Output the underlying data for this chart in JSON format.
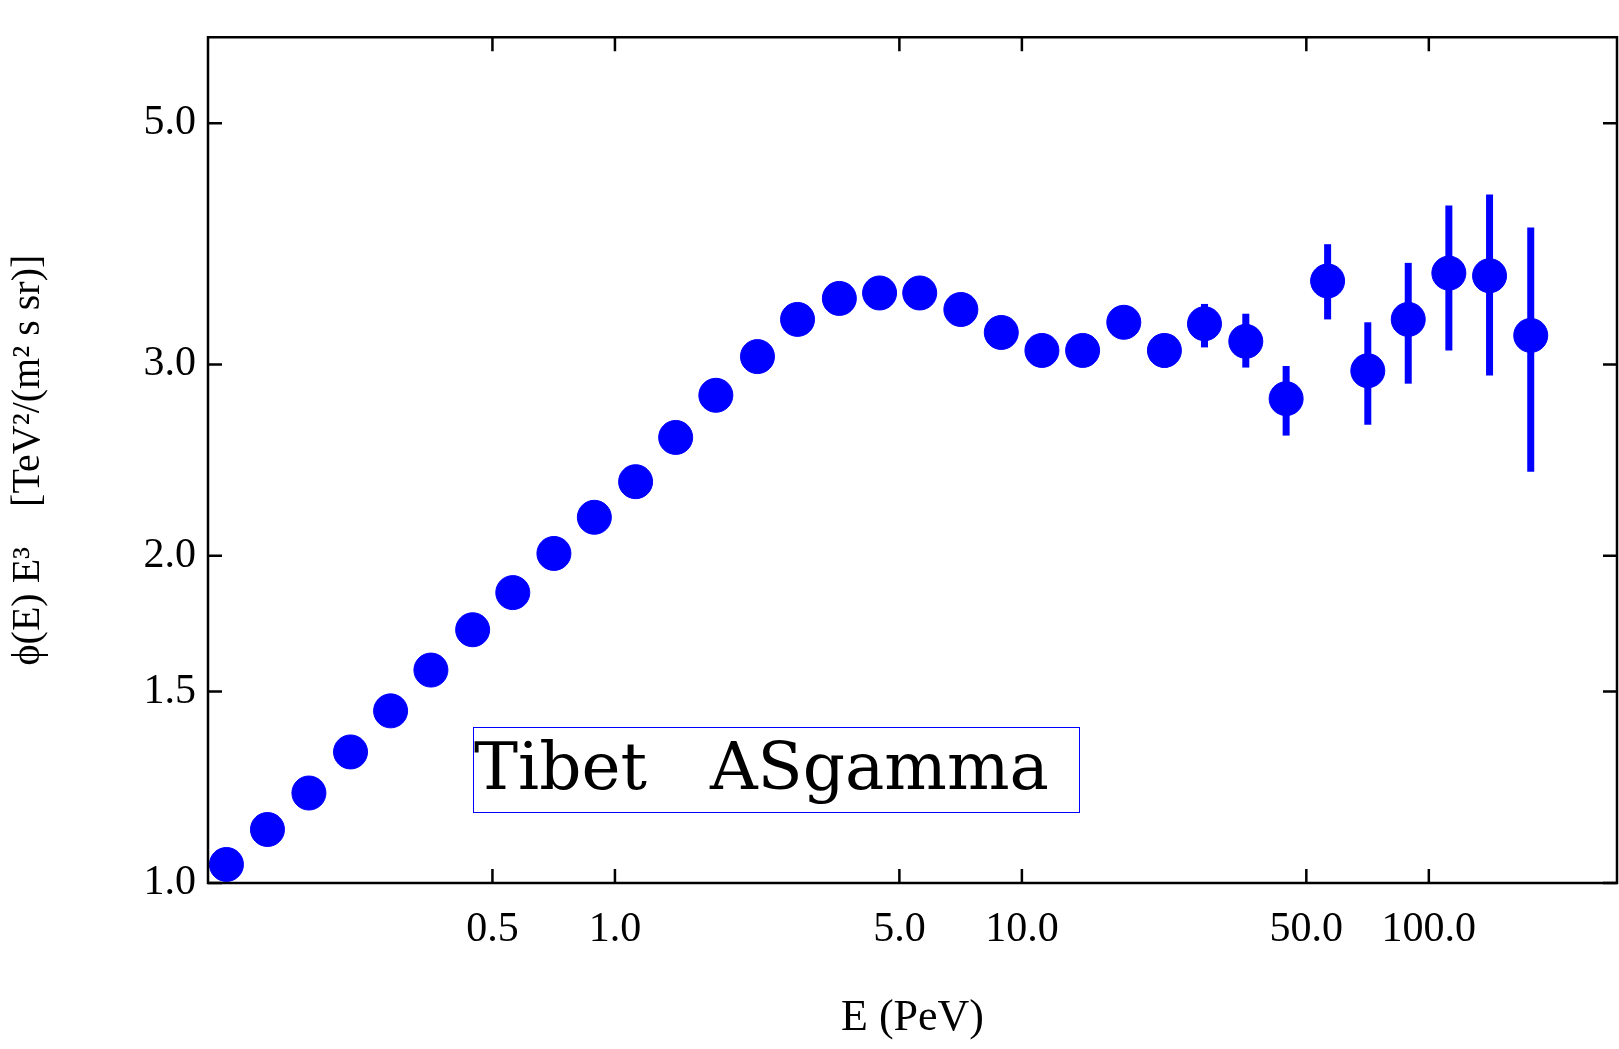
{
  "chart_data": {
    "type": "scatter",
    "xlabel": "E (PeV)",
    "ylabel": "ϕ(E) E³    [TeV²/(m² s sr)]",
    "log": "xy",
    "grid": false,
    "legend": false,
    "marker": "circle",
    "annotations": [
      "Tibet   ASgamma"
    ],
    "xlim": [
      0.1,
      290
    ],
    "ylim": [
      1.0,
      6.0
    ],
    "xticks": [
      0.5,
      {
        "value": 1,
        "label": "1.0"
      },
      {
        "value": 5,
        "label": "5.0"
      },
      {
        "value": 10,
        "label": "10.0"
      },
      {
        "value": 50,
        "label": "50.0"
      },
      {
        "value": 100,
        "label": "100.0"
      }
    ],
    "yticks": [
      {
        "value": 1,
        "label": "1.0"
      },
      1.5,
      {
        "value": 2,
        "label": "2.0"
      },
      {
        "value": 3,
        "label": "3.0"
      },
      {
        "value": 5,
        "label": "5.0"
      }
    ],
    "series": [
      {
        "color": "#0000ff",
        "x": [
          0.111,
          0.14,
          0.177,
          0.224,
          0.281,
          0.353,
          0.447,
          0.561,
          0.708,
          0.89,
          1.124,
          1.41,
          1.77,
          2.24,
          2.81,
          3.56,
          4.47,
          5.61,
          7.08,
          8.9,
          11.2,
          14.1,
          17.8,
          22.4,
          28.1,
          35.5,
          44.6,
          56.4,
          70.8,
          89.0,
          112,
          141,
          178
        ],
        "values": [
          1.04,
          1.12,
          1.21,
          1.32,
          1.44,
          1.57,
          1.71,
          1.85,
          2.01,
          2.17,
          2.34,
          2.57,
          2.81,
          3.05,
          3.3,
          3.45,
          3.49,
          3.49,
          3.37,
          3.21,
          3.09,
          3.09,
          3.28,
          3.09,
          3.27,
          3.15,
          2.79,
          3.58,
          2.96,
          3.3,
          3.64,
          3.62,
          3.19
        ],
        "errors": [
          null,
          null,
          null,
          null,
          null,
          null,
          null,
          null,
          null,
          null,
          null,
          null,
          null,
          null,
          null,
          null,
          null,
          null,
          null,
          null,
          null,
          null,
          null,
          [
            2.98,
            3.2
          ],
          [
            3.11,
            3.41
          ],
          [
            2.98,
            3.34
          ],
          [
            2.58,
            2.99
          ],
          [
            3.3,
            3.87
          ],
          [
            2.64,
            3.28
          ],
          [
            2.88,
            3.72
          ],
          [
            3.09,
            4.2
          ],
          [
            2.93,
            4.3
          ],
          [
            2.39,
            4.01
          ]
        ]
      }
    ]
  }
}
